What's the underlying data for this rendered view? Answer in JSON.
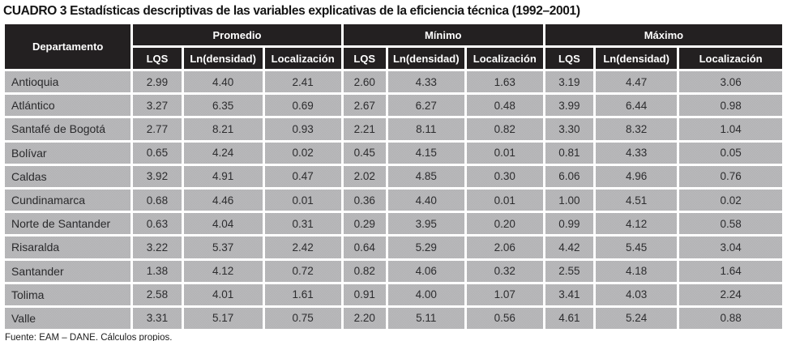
{
  "title": "CUADRO 3 Estadísticas descriptivas de las variables explicativas de la eficiencia técnica (1992–2001)",
  "footer": "Fuente: EAM – DANE. Cálculos propios.",
  "colors": {
    "header_bg": "#232021",
    "header_text": "#ffffff",
    "cell_bg": "#b5b5b7",
    "gutter": "#ffffff",
    "body_text": "#2d2d2f"
  },
  "table": {
    "corner_header": "Departamento",
    "groups": [
      "Promedio",
      "Mínimo",
      "Máximo"
    ],
    "sub_headers": [
      "LQS",
      "Ln(densidad)",
      "Localización"
    ],
    "rows": [
      {
        "departamento": "Antioquia",
        "values": [
          "2.99",
          "4.40",
          "2.41",
          "2.60",
          "4.33",
          "1.63",
          "3.19",
          "4.47",
          "3.06"
        ]
      },
      {
        "departamento": "Atlántico",
        "values": [
          "3.27",
          "6.35",
          "0.69",
          "2.67",
          "6.27",
          "0.48",
          "3.99",
          "6.44",
          "0.98"
        ]
      },
      {
        "departamento": "Santafé de Bogotá",
        "values": [
          "2.77",
          "8.21",
          "0.93",
          "2.21",
          "8.11",
          "0.82",
          "3.30",
          "8.32",
          "1.04"
        ]
      },
      {
        "departamento": "Bolívar",
        "values": [
          "0.65",
          "4.24",
          "0.02",
          "0.45",
          "4.15",
          "0.01",
          "0.81",
          "4.33",
          "0.05"
        ]
      },
      {
        "departamento": "Caldas",
        "values": [
          "3.92",
          "4.91",
          "0.47",
          "2.02",
          "4.85",
          "0.30",
          "6.06",
          "4.96",
          "0.76"
        ]
      },
      {
        "departamento": "Cundinamarca",
        "values": [
          "0.68",
          "4.46",
          "0.01",
          "0.36",
          "4.40",
          "0.01",
          "1.00",
          "4.51",
          "0.02"
        ]
      },
      {
        "departamento": "Norte de Santander",
        "values": [
          "0.63",
          "4.04",
          "0.31",
          "0.29",
          "3.95",
          "0.20",
          "0.99",
          "4.12",
          "0.58"
        ]
      },
      {
        "departamento": "Risaralda",
        "values": [
          "3.22",
          "5.37",
          "2.42",
          "0.64",
          "5.29",
          "2.06",
          "4.42",
          "5.45",
          "3.04"
        ]
      },
      {
        "departamento": "Santander",
        "values": [
          "1.38",
          "4.12",
          "0.72",
          "0.82",
          "4.06",
          "0.32",
          "2.55",
          "4.18",
          "1.64"
        ]
      },
      {
        "departamento": "Tolima",
        "values": [
          "2.58",
          "4.01",
          "1.61",
          "0.91",
          "4.00",
          "1.07",
          "3.41",
          "4.03",
          "2.24"
        ]
      },
      {
        "departamento": "Valle",
        "values": [
          "3.31",
          "5.17",
          "0.75",
          "2.20",
          "5.11",
          "0.56",
          "4.61",
          "5.24",
          "0.88"
        ]
      }
    ]
  }
}
